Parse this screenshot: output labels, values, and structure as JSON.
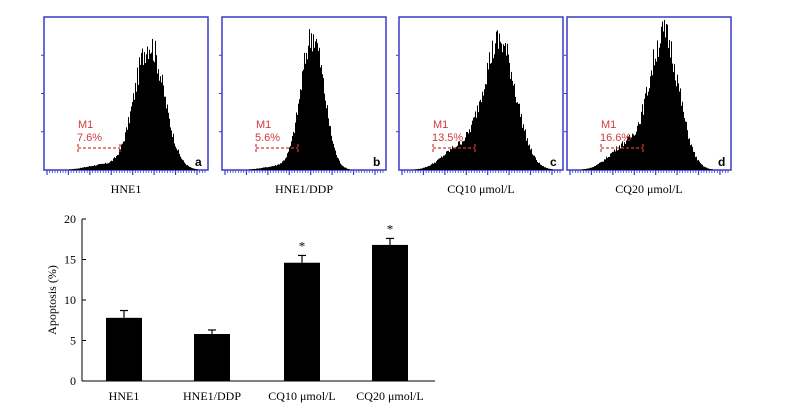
{
  "chart_data": [
    {
      "type": "histogram",
      "panels": [
        {
          "letter": "a",
          "caption": "HNE1",
          "gate_label": "M1",
          "percent": "7.6%",
          "apoptosis": 7.6
        },
        {
          "letter": "b",
          "caption": "HNE1/DDP",
          "gate_label": "M1",
          "percent": "5.6%",
          "apoptosis": 5.6
        },
        {
          "letter": "c",
          "caption": "CQ10 μmol/L",
          "gate_label": "M1",
          "percent": "13.5%",
          "apoptosis": 13.5
        },
        {
          "letter": "d",
          "caption": "CQ20 μmol/L",
          "gate_label": "M1",
          "percent": "16.6%",
          "apoptosis": 16.6
        }
      ],
      "colors": {
        "frame": "#3a3acc",
        "fill": "#000000",
        "gate": "#d23a3a"
      }
    },
    {
      "type": "bar",
      "ylabel": "Apoptosis (%)",
      "ylim": [
        0,
        20
      ],
      "yticks": [
        0,
        5,
        10,
        15,
        20
      ],
      "categories": [
        "HNE1",
        "HNE1/DDP",
        "CQ10 μmol/L",
        "CQ20 μmol/L"
      ],
      "values": [
        7.8,
        5.8,
        14.6,
        16.8
      ],
      "errors": [
        0.9,
        0.5,
        0.9,
        0.8
      ],
      "significance": [
        "",
        "",
        "*",
        "*"
      ],
      "colors": {
        "bar": "#000000"
      }
    }
  ]
}
